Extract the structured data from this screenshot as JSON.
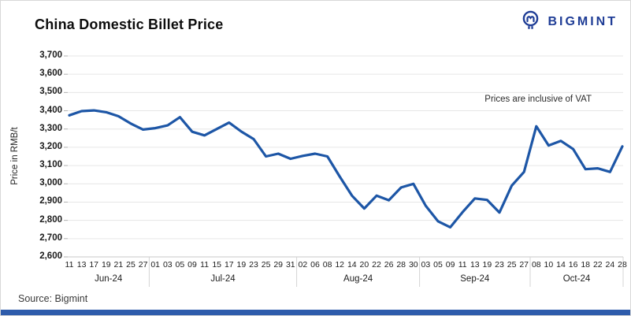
{
  "header": {
    "title": "China Domestic Billet Price",
    "logo_text": "BIGMINT",
    "logo_icon": "miner-circle-icon"
  },
  "source": "Source: Bigmint",
  "colors": {
    "line": "#1d56a6",
    "logo_navy": "#1f3d96",
    "bottom_bar": "#2e5cab",
    "grid": "#e6e6e6",
    "axis": "#c9c9c9",
    "separator": "#d4d4d4"
  },
  "chart_data": {
    "type": "line",
    "title": "China Domestic Billet Price",
    "ylabel": "Price in RMB/t",
    "annotation": "Prices are inclusive of VAT",
    "legend_position": "none",
    "grid": "horizontal",
    "ylim": [
      2600,
      3700
    ],
    "y_ticks": [
      {
        "label": "3,700",
        "value": 3700
      },
      {
        "label": "3,600",
        "value": 3600
      },
      {
        "label": "3,500",
        "value": 3500
      },
      {
        "label": "3,400",
        "value": 3400
      },
      {
        "label": "3,300",
        "value": 3300
      },
      {
        "label": "3,200",
        "value": 3200
      },
      {
        "label": "3,100",
        "value": 3100
      },
      {
        "label": "3,000",
        "value": 3000
      },
      {
        "label": "2,900",
        "value": 2900
      },
      {
        "label": "2,800",
        "value": 2800
      },
      {
        "label": "2,700",
        "value": 2700
      },
      {
        "label": "2,600",
        "value": 2600
      }
    ],
    "x_tick_labels": [
      "11",
      "13",
      "17",
      "19",
      "21",
      "25",
      "27",
      "01",
      "03",
      "05",
      "09",
      "11",
      "15",
      "17",
      "19",
      "23",
      "25",
      "29",
      "31",
      "02",
      "06",
      "08",
      "12",
      "14",
      "20",
      "22",
      "26",
      "28",
      "30",
      "03",
      "05",
      "09",
      "11",
      "13",
      "19",
      "23",
      "25",
      "27",
      "08",
      "10",
      "14",
      "16",
      "18",
      "22",
      "24",
      "28"
    ],
    "months": [
      {
        "label": "Jun-24",
        "ticks": 7
      },
      {
        "label": "Jul-24",
        "ticks": 12
      },
      {
        "label": "Aug-24",
        "ticks": 10
      },
      {
        "label": "Sep-24",
        "ticks": 9
      },
      {
        "label": "Oct-24",
        "ticks": 8
      }
    ],
    "series": [
      {
        "name": "China Domestic Billet Price (RMB/t, incl. VAT)",
        "values": [
          3375,
          3398,
          3402,
          3392,
          3370,
          3330,
          3297,
          3305,
          3320,
          3365,
          3285,
          3265,
          3300,
          3335,
          3286,
          3245,
          3150,
          3165,
          3137,
          3153,
          3165,
          3150,
          3040,
          2935,
          2865,
          2935,
          2910,
          2980,
          3000,
          2880,
          2795,
          2762,
          2845,
          2920,
          2912,
          2843,
          2990,
          3065,
          3315,
          3210,
          3235,
          3190,
          3080,
          3085,
          3065,
          3205
        ]
      }
    ]
  }
}
